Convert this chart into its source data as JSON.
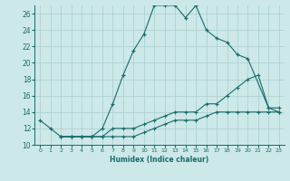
{
  "title": "",
  "xlabel": "Humidex (Indice chaleur)",
  "bg_color": "#cce8e8",
  "line_color": "#1a6b6b",
  "grid_color": "#aacece",
  "xlim": [
    -0.5,
    23.5
  ],
  "ylim": [
    10,
    27
  ],
  "yticks": [
    10,
    12,
    14,
    16,
    18,
    20,
    22,
    24,
    26
  ],
  "xticks": [
    0,
    1,
    2,
    3,
    4,
    5,
    6,
    7,
    8,
    9,
    10,
    11,
    12,
    13,
    14,
    15,
    16,
    17,
    18,
    19,
    20,
    21,
    22,
    23
  ],
  "line1_x": [
    0,
    1,
    2,
    3,
    4,
    5,
    6,
    7,
    8,
    9,
    10,
    11,
    12,
    13,
    14,
    15,
    16,
    17,
    18,
    19,
    20,
    22,
    23
  ],
  "line1_y": [
    13,
    12,
    11,
    11,
    11,
    11,
    12,
    15,
    18.5,
    21.5,
    23.5,
    27,
    27,
    27,
    25.5,
    27,
    24,
    23,
    22.5,
    21,
    20.5,
    14.5,
    14
  ],
  "line2_x": [
    2,
    3,
    4,
    5,
    6,
    7,
    8,
    9,
    10,
    11,
    12,
    13,
    14,
    15,
    16,
    17,
    18,
    19,
    20,
    21,
    22,
    23
  ],
  "line2_y": [
    11,
    11,
    11,
    11,
    11,
    11,
    11,
    11,
    11.5,
    12,
    12.5,
    13,
    13,
    13,
    13.5,
    14,
    14,
    14,
    14,
    14,
    14,
    14
  ],
  "line3_x": [
    2,
    3,
    4,
    5,
    6,
    7,
    8,
    9,
    10,
    11,
    12,
    13,
    14,
    15,
    16,
    17,
    18,
    19,
    20,
    21,
    22,
    23
  ],
  "line3_y": [
    11,
    11,
    11,
    11,
    11,
    12,
    12,
    12,
    12.5,
    13,
    13.5,
    14,
    14,
    14,
    15,
    15,
    16,
    17,
    18,
    18.5,
    14.5,
    14.5
  ]
}
